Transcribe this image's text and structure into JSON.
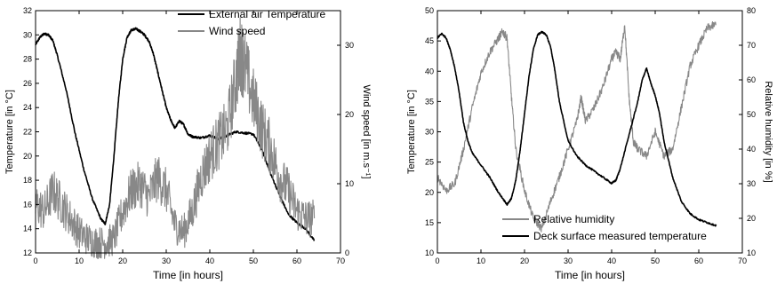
{
  "chart_data": [
    {
      "type": "line",
      "xlabel": "Time [in hours]",
      "ylabel_left": "Temperature [in °C]",
      "ylabel_right": "Wind speed [in m.s⁻¹]",
      "xlim": [
        0,
        70
      ],
      "ylim_left": [
        12,
        32
      ],
      "ylim_right": [
        0,
        35
      ],
      "x_ticks": [
        0,
        10,
        20,
        30,
        40,
        50,
        60,
        70
      ],
      "y_ticks_left": [
        12,
        14,
        16,
        18,
        20,
        22,
        24,
        26,
        28,
        30,
        32
      ],
      "y_ticks_right": [
        0,
        10,
        20,
        30
      ],
      "legend_position": "top-right",
      "grid": false,
      "series": [
        {
          "name": "External air Temperature",
          "axis": "left",
          "color": "#000000",
          "x": [
            0,
            1,
            2,
            3,
            4,
            5,
            7,
            9,
            11,
            13,
            15,
            16,
            17,
            18,
            19,
            20,
            21,
            22,
            23,
            24,
            25,
            26,
            27,
            28,
            29,
            30,
            31,
            32,
            33,
            34,
            35,
            36,
            38,
            40,
            42,
            44,
            46,
            48,
            50,
            52,
            54,
            56,
            58,
            60,
            62,
            64
          ],
          "values": [
            29.2,
            29.8,
            30.1,
            30.0,
            29.5,
            28.3,
            25.5,
            22.0,
            19.0,
            16.5,
            14.8,
            14.4,
            16.0,
            20.0,
            24.5,
            28.0,
            29.8,
            30.4,
            30.5,
            30.3,
            30.0,
            29.5,
            28.5,
            27.0,
            25.5,
            24.0,
            23.0,
            22.3,
            22.9,
            22.6,
            21.8,
            21.6,
            21.5,
            21.7,
            21.4,
            21.7,
            22.0,
            21.9,
            21.8,
            20.5,
            18.5,
            16.8,
            15.2,
            14.5,
            14.0,
            13.0
          ]
        },
        {
          "name": "Wind speed",
          "axis": "right",
          "color": "#888888",
          "x": [
            0,
            2,
            4,
            6,
            8,
            10,
            12,
            14,
            16,
            18,
            20,
            22,
            24,
            26,
            28,
            30,
            32,
            34,
            36,
            38,
            40,
            42,
            44,
            46,
            47,
            48,
            50,
            52,
            54,
            56,
            58,
            60,
            62,
            64
          ],
          "values": [
            7,
            6,
            9,
            7,
            5,
            3,
            2,
            1.5,
            1.5,
            2,
            6,
            9,
            10,
            8,
            11,
            9,
            4,
            3,
            6,
            11,
            14,
            16,
            18,
            25,
            29,
            27,
            22,
            18,
            15,
            11,
            9,
            6,
            5,
            5
          ]
        }
      ]
    },
    {
      "type": "line",
      "xlabel": "Time [in hours]",
      "ylabel_left": "Temperature [in °C]",
      "ylabel_right": "Relative humidity [in %]",
      "xlim": [
        0,
        70
      ],
      "ylim_left": [
        10,
        50
      ],
      "ylim_right": [
        10,
        80
      ],
      "x_ticks": [
        0,
        10,
        20,
        30,
        40,
        50,
        60,
        70
      ],
      "y_ticks_left": [
        10,
        15,
        20,
        25,
        30,
        35,
        40,
        45,
        50
      ],
      "y_ticks_right": [
        10,
        20,
        30,
        40,
        50,
        60,
        70,
        80
      ],
      "legend_position": "bottom-right",
      "grid": false,
      "series": [
        {
          "name": "Relative humidity",
          "axis": "right",
          "color": "#888888",
          "x": [
            0,
            2,
            4,
            6,
            8,
            10,
            12,
            14,
            15,
            16,
            17,
            18,
            20,
            22,
            24,
            26,
            28,
            30,
            32,
            33,
            34,
            36,
            38,
            40,
            41,
            42,
            43,
            44,
            45,
            46,
            48,
            50,
            52,
            54,
            56,
            58,
            60,
            62,
            64
          ],
          "values": [
            32,
            28,
            30,
            40,
            52,
            62,
            68,
            72,
            74,
            72,
            55,
            40,
            28,
            20,
            17,
            25,
            32,
            40,
            48,
            55,
            48,
            52,
            58,
            66,
            68,
            66,
            76,
            55,
            42,
            40,
            38,
            45,
            38,
            40,
            52,
            64,
            70,
            75,
            76
          ]
        },
        {
          "name": "Deck surface measured temperature",
          "axis": "left",
          "color": "#000000",
          "x": [
            0,
            1,
            2,
            3,
            4,
            5,
            6,
            7,
            8,
            10,
            12,
            14,
            16,
            17,
            18,
            19,
            20,
            21,
            22,
            23,
            24,
            25,
            26,
            27,
            28,
            30,
            32,
            34,
            36,
            38,
            40,
            41,
            42,
            44,
            46,
            47,
            48,
            49,
            50,
            51,
            52,
            54,
            56,
            58,
            60,
            62,
            64
          ],
          "values": [
            45.5,
            46.2,
            45.5,
            43.5,
            40.5,
            36.5,
            31.5,
            28.5,
            26.5,
            24.5,
            22.5,
            20.0,
            18.0,
            19.0,
            22.0,
            27.0,
            33.0,
            39.0,
            43.5,
            46.0,
            46.5,
            46.0,
            44.0,
            40.0,
            35.0,
            28.5,
            26.0,
            24.5,
            23.5,
            22.5,
            21.5,
            22.0,
            24.0,
            29.5,
            35.0,
            38.5,
            40.5,
            38.0,
            36.0,
            33.0,
            28.5,
            22.5,
            18.5,
            16.5,
            15.5,
            15.0,
            14.5
          ]
        }
      ]
    }
  ]
}
